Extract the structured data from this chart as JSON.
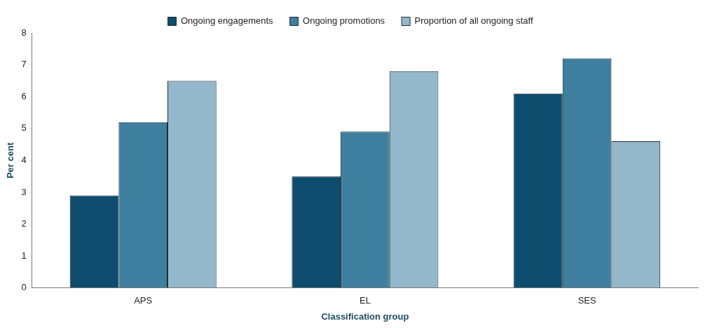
{
  "chart_data": {
    "type": "bar",
    "xlabel": "Classification group",
    "ylabel": "Per cent",
    "categories": [
      "APS",
      "EL",
      "SES"
    ],
    "series": [
      {
        "name": "Ongoing engagements",
        "color": "#0e4d6e",
        "values": [
          2.9,
          3.5,
          6.1
        ]
      },
      {
        "name": "Ongoing promotions",
        "color": "#3f7f9f",
        "values": [
          5.2,
          4.9,
          7.2
        ]
      },
      {
        "name": "Proportion of all ongoing staff",
        "color": "#94b8cb",
        "values": [
          6.5,
          6.8,
          4.6
        ]
      }
    ],
    "ylim": [
      0,
      8
    ],
    "yticks": [
      0,
      1,
      2,
      3,
      4,
      5,
      6,
      7,
      8
    ],
    "grid": false,
    "legend": "top"
  }
}
